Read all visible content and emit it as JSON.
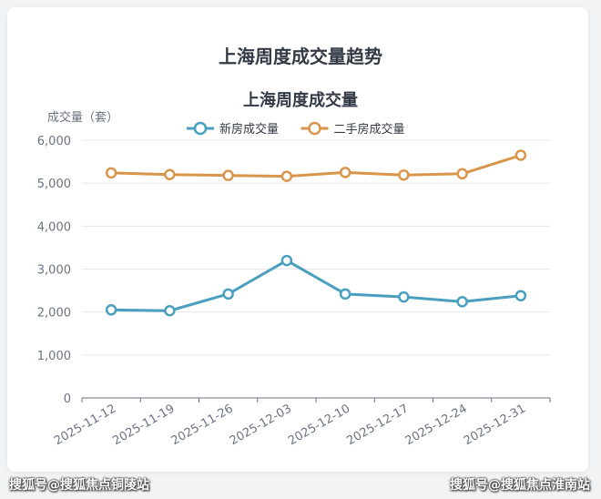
{
  "page": {
    "title": "上海周度成交量趋势",
    "watermark_left": "搜狐号@搜狐焦点铜陵站",
    "watermark_right": "搜狐号@搜狐焦点淮南站"
  },
  "chart_data": {
    "type": "line",
    "title": "上海周度成交量",
    "ylabel": "成交量（套）",
    "xlabel": "",
    "categories": [
      "2025-11-12",
      "2025-11-19",
      "2025-11-26",
      "2025-12-03",
      "2025-12-10",
      "2025-12-17",
      "2025-12-24",
      "2025-12-31"
    ],
    "ylim": [
      0,
      6000
    ],
    "yticks": [
      "0",
      "1,000",
      "2,000",
      "3,000",
      "4,000",
      "5,000",
      "6,000"
    ],
    "grid": true,
    "legend": "top-center",
    "series": [
      {
        "name": "新房成交量",
        "color": "#4a9fbf",
        "values": [
          2050,
          2030,
          2420,
          3200,
          2420,
          2350,
          2240,
          2380
        ]
      },
      {
        "name": "二手房成交量",
        "color": "#d9964a",
        "values": [
          5240,
          5200,
          5180,
          5160,
          5250,
          5190,
          5220,
          5650
        ]
      }
    ]
  }
}
